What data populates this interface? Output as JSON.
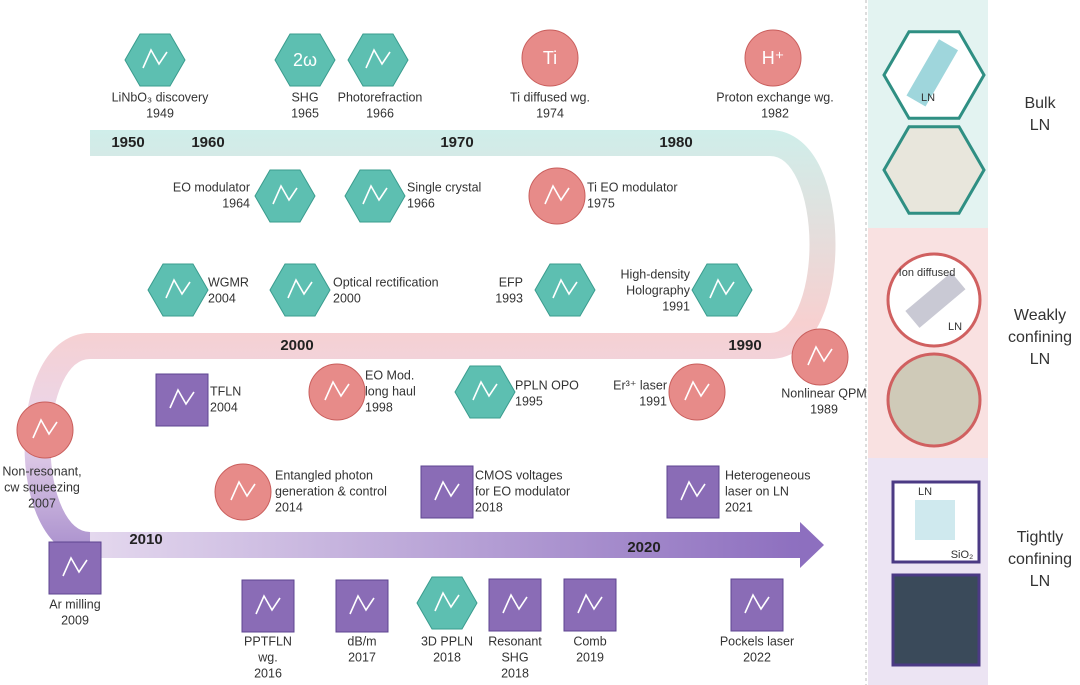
{
  "milestones": [
    {
      "lines": [
        "LiNbO₃ discovery"
      ],
      "year": "1949"
    },
    {
      "lines": [
        "SHG"
      ],
      "year": "1965",
      "icon_text": "2ω"
    },
    {
      "lines": [
        "Photorefraction"
      ],
      "year": "1966"
    },
    {
      "lines": [
        "Ti diffused wg."
      ],
      "year": "1974",
      "icon_text": "Ti"
    },
    {
      "lines": [
        "Proton exchange wg."
      ],
      "year": "1982",
      "icon_text": "H⁺"
    },
    {
      "lines": [
        "EO modulator"
      ],
      "year": "1964"
    },
    {
      "lines": [
        "Single crystal"
      ],
      "year": "1966"
    },
    {
      "lines": [
        "Ti EO modulator"
      ],
      "year": "1975"
    },
    {
      "lines": [
        "WGMR"
      ],
      "year": "2004"
    },
    {
      "lines": [
        "Optical rectification"
      ],
      "year": "2000"
    },
    {
      "lines": [
        "EFP"
      ],
      "year": "1993"
    },
    {
      "lines": [
        "High-density",
        "Holography"
      ],
      "year": "1991"
    },
    {
      "lines": [
        "TFLN"
      ],
      "year": "2004"
    },
    {
      "lines": [
        "EO Mod.",
        "long haul"
      ],
      "year": "1998"
    },
    {
      "lines": [
        "PPLN OPO"
      ],
      "year": "1995"
    },
    {
      "lines": [
        "Er³⁺ laser"
      ],
      "year": "1991"
    },
    {
      "lines": [
        "Nonlinear QPM"
      ],
      "year": "1989"
    },
    {
      "lines": [
        "Non-resonant,",
        "cw squeezing"
      ],
      "year": "2007"
    },
    {
      "lines": [
        "Entangled photon",
        "generation & control"
      ],
      "year": "2014"
    },
    {
      "lines": [
        "CMOS voltages",
        "for EO modulator"
      ],
      "year": "2018"
    },
    {
      "lines": [
        "Heterogeneous",
        "laser on LN"
      ],
      "year": "2021"
    },
    {
      "lines": [
        "Ar milling"
      ],
      "year": "2009"
    },
    {
      "lines": [
        "PPTFLN",
        "wg."
      ],
      "year": "2016"
    },
    {
      "lines": [
        "dB/m"
      ],
      "year": "2017"
    },
    {
      "lines": [
        "3D PPLN"
      ],
      "year": "2018"
    },
    {
      "lines": [
        "Resonant",
        "SHG"
      ],
      "year": "2018"
    },
    {
      "lines": [
        "Comb"
      ],
      "year": "2019"
    },
    {
      "lines": [
        "Pockels laser"
      ],
      "year": "2022"
    }
  ],
  "decades": [
    "1950",
    "1960",
    "1970",
    "1980",
    "1990",
    "2000",
    "2010",
    "2020"
  ],
  "panels": [
    {
      "title": [
        "Bulk",
        "LN"
      ],
      "tags": [
        "LN"
      ]
    },
    {
      "title": [
        "Weakly",
        "confining",
        "LN"
      ],
      "tags": [
        "Ion diffused",
        "LN"
      ]
    },
    {
      "title": [
        "Tightly",
        "confining",
        "LN"
      ],
      "tags": [
        "LN",
        "SiO₂"
      ]
    }
  ]
}
